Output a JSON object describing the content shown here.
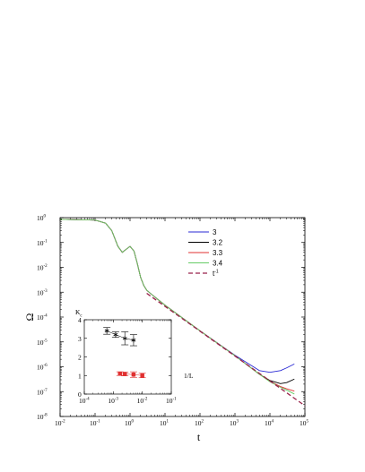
{
  "chart_data": [
    {
      "type": "line",
      "xlabel": "t",
      "ylabel": "Ω",
      "xscale": "log",
      "yscale": "log",
      "xlim": [
        0.01,
        100000
      ],
      "ylim": [
        1e-08,
        1
      ],
      "x_tick_labels": [
        "10^-2",
        "10^-1",
        "10^0",
        "10^1",
        "10^2",
        "10^3",
        "10^4",
        "10^5"
      ],
      "y_tick_labels": [
        "10^-8",
        "10^-7",
        "10^-6",
        "10^-5",
        "10^-4",
        "10^-3",
        "10^-2",
        "10^-1",
        "10^0"
      ],
      "legend_position": "right",
      "series": [
        {
          "name": "3",
          "color": "#2a2ad4",
          "style": "solid",
          "x": [
            0.01,
            0.1,
            0.2,
            0.3,
            0.45,
            0.6,
            0.8,
            1,
            1.3,
            1.6,
            2,
            2.5,
            3,
            4,
            10,
            100,
            1000,
            5000,
            10000,
            20000,
            30000,
            50000
          ],
          "y": [
            0.85,
            0.8,
            0.6,
            0.3,
            0.07,
            0.04,
            0.055,
            0.07,
            0.045,
            0.015,
            0.004,
            0.0018,
            0.0012,
            0.00085,
            0.0003,
            2.8e-05,
            2.9e-06,
            7e-07,
            6e-07,
            7e-07,
            9e-07,
            1.3e-06
          ]
        },
        {
          "name": "3.2",
          "color": "#000000",
          "style": "solid",
          "x": [
            0.01,
            0.1,
            0.2,
            0.3,
            0.45,
            0.6,
            0.8,
            1,
            1.3,
            1.6,
            2,
            2.5,
            3,
            4,
            10,
            100,
            1000,
            5000,
            10000,
            20000,
            30000,
            50000
          ],
          "y": [
            0.85,
            0.8,
            0.6,
            0.3,
            0.07,
            0.04,
            0.055,
            0.07,
            0.045,
            0.015,
            0.004,
            0.0018,
            0.0012,
            0.00085,
            0.0003,
            2.8e-05,
            2.8e-06,
            5e-07,
            2.8e-07,
            2.1e-07,
            2.3e-07,
            3.2e-07
          ]
        },
        {
          "name": "3.3",
          "color": "#e03030",
          "style": "solid",
          "x": [
            0.01,
            0.1,
            0.2,
            0.3,
            0.45,
            0.6,
            0.8,
            1,
            1.3,
            1.6,
            2,
            2.5,
            3,
            4,
            10,
            100,
            1000,
            5000,
            10000,
            20000,
            30000,
            50000
          ],
          "y": [
            0.85,
            0.8,
            0.6,
            0.3,
            0.07,
            0.04,
            0.055,
            0.07,
            0.045,
            0.015,
            0.004,
            0.0018,
            0.0012,
            0.00085,
            0.0003,
            2.8e-05,
            2.8e-06,
            5e-07,
            2.6e-07,
            1.6e-07,
            1.3e-07,
            1.05e-07
          ]
        },
        {
          "name": "3.4",
          "color": "#66cc66",
          "style": "solid",
          "x": [
            0.01,
            0.1,
            0.2,
            0.3,
            0.45,
            0.6,
            0.8,
            1,
            1.3,
            1.6,
            2,
            2.5,
            3,
            4,
            10,
            100,
            1000,
            5000,
            10000,
            20000,
            30000,
            50000
          ],
          "y": [
            0.85,
            0.8,
            0.6,
            0.3,
            0.07,
            0.04,
            0.055,
            0.07,
            0.045,
            0.015,
            0.004,
            0.0018,
            0.0012,
            0.00085,
            0.0003,
            2.8e-05,
            2.8e-06,
            5e-07,
            2.5e-07,
            1.5e-07,
            1.15e-07,
            8e-08
          ]
        },
        {
          "name": "t^-1",
          "color": "#99224a",
          "style": "dashed",
          "x": [
            3,
            100000
          ],
          "y": [
            0.0009,
            2.7e-08
          ]
        }
      ]
    },
    {
      "type": "scatter",
      "inset": true,
      "xlabel": "1/L",
      "ylabel": "K_c",
      "xscale": "log",
      "xlim": [
        0.0001,
        0.1
      ],
      "ylim": [
        0,
        4
      ],
      "x_tick_labels": [
        "10^-4",
        "10^-3",
        "10^-2",
        "10^-1"
      ],
      "y_tick_labels": [
        "0",
        "1",
        "2",
        "3",
        "4"
      ],
      "series": [
        {
          "color": "#000000",
          "marker": "star",
          "x": [
            0.0006,
            0.0012,
            0.0025,
            0.005
          ],
          "y": [
            3.4,
            3.2,
            3.0,
            2.9
          ],
          "yerr": [
            0.18,
            0.15,
            0.35,
            0.3
          ]
        },
        {
          "color": "#e03030",
          "marker": "square",
          "x": [
            0.0017,
            0.0025,
            0.005,
            0.01
          ],
          "y": [
            1.1,
            1.08,
            1.05,
            1.0
          ],
          "yerr": [
            0.1,
            0.1,
            0.15,
            0.12
          ]
        }
      ]
    }
  ]
}
